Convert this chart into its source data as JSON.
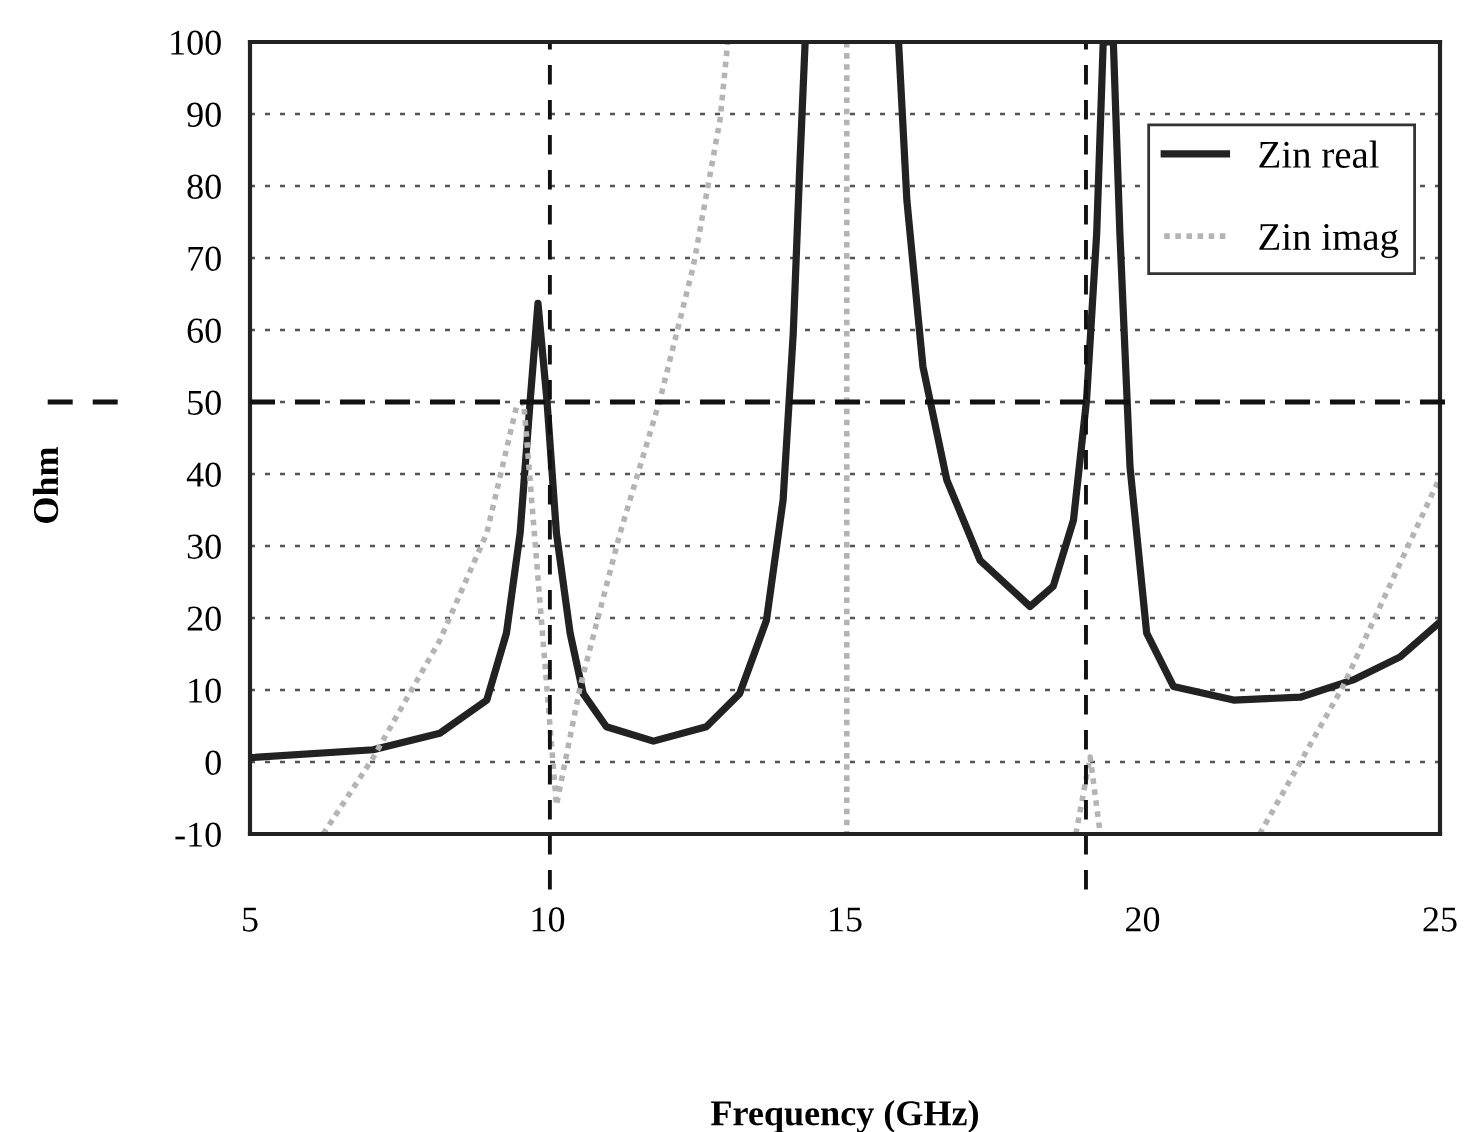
{
  "chart_data": {
    "type": "line",
    "xlabel": "Frequency (GHz)",
    "ylabel": "Ohm",
    "xlim": [
      5,
      25
    ],
    "xticks": [
      5,
      10,
      15,
      20,
      25
    ],
    "ylim": [
      -10,
      100
    ],
    "yticks": [
      -10,
      0,
      10,
      20,
      30,
      40,
      50,
      60,
      70,
      80,
      90,
      100
    ],
    "grid": "y",
    "legend": "top right",
    "marker": "none",
    "series": [
      {
        "name": "Zin real",
        "color": "#222222",
        "line_style": "solid",
        "x": [
          5,
          7.07,
          8.19,
          8.98,
          9.31,
          9.54,
          9.71,
          9.84,
          9.99,
          10.15,
          10.38,
          10.6,
          10.99,
          11.78,
          12.67,
          13.23,
          13.68,
          13.96,
          14.13,
          14.24,
          14.33,
          15.0,
          15.9,
          16.04,
          16.31,
          16.71,
          17.27,
          18.11,
          18.5,
          18.84,
          19.06,
          19.23,
          19.34,
          19.51,
          19.62,
          19.79,
          20.07,
          20.52,
          21.53,
          22.65,
          23.54,
          24.33,
          24.98
        ],
        "values": [
          0.6,
          1.7,
          4,
          8.6,
          17.9,
          31.8,
          50.3,
          63.7,
          50.3,
          31.8,
          17.9,
          9.5,
          4.9,
          2.9,
          4.9,
          9.5,
          19.7,
          36.4,
          59.5,
          82.7,
          100,
          null,
          100,
          78,
          54.9,
          39.2,
          28,
          21.6,
          24.4,
          33.6,
          50.3,
          73.4,
          100,
          100,
          73.4,
          41,
          17.9,
          10.5,
          8.6,
          9,
          11.4,
          14.6,
          19.3
        ]
      },
      {
        "name": "Zin imag",
        "color": "#b4b4b4",
        "line_style": "dotted",
        "x": [
          6.23,
          7.07,
          8.19,
          8.98,
          9.48,
          9.6,
          10.15,
          10.55,
          11.22,
          11.89,
          12.45,
          12.9,
          13.03,
          14.0,
          15.03,
          15.03,
          17.0,
          18.88,
          19.12,
          19.29,
          20.5,
          21.97,
          23.37,
          24.98
        ],
        "values": [
          -10,
          0.6,
          16.9,
          31.8,
          49.4,
          50,
          -6,
          10.5,
          31.8,
          50.3,
          68.8,
          89.2,
          100,
          null,
          100,
          -10,
          null,
          -10,
          0.7,
          -10,
          null,
          -10,
          10.5,
          39.2
        ]
      }
    ],
    "ref_lines": [
      {
        "axis": "y",
        "value": 50,
        "color": "#111111",
        "line_style": "dashed"
      },
      {
        "axis": "x",
        "value": 10.04,
        "color": "#111111",
        "line_style": "dashed"
      },
      {
        "axis": "x",
        "value": 19.05,
        "color": "#111111",
        "line_style": "dashed"
      }
    ]
  }
}
